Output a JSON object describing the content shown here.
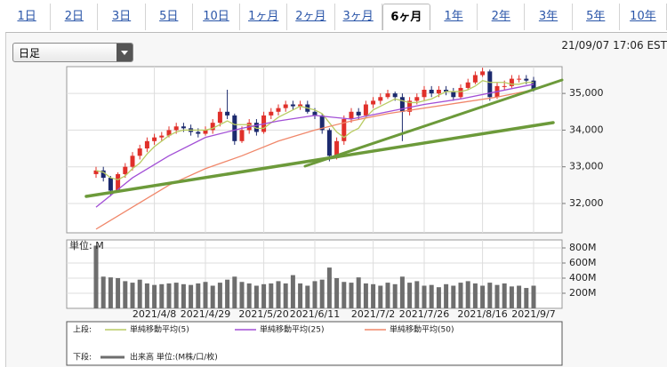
{
  "tabs": [
    {
      "label": "1日"
    },
    {
      "label": "2日"
    },
    {
      "label": "3日"
    },
    {
      "label": "5日"
    },
    {
      "label": "10日"
    },
    {
      "label": "1ヶ月"
    },
    {
      "label": "2ヶ月"
    },
    {
      "label": "3ヶ月"
    },
    {
      "label": "6ヶ月",
      "active": true
    },
    {
      "label": "1年"
    },
    {
      "label": "2年"
    },
    {
      "label": "3年"
    },
    {
      "label": "5年"
    },
    {
      "label": "10年"
    }
  ],
  "period_select": "日足",
  "timestamp": "21/09/07 17:06 EST",
  "chart_data": [
    {
      "type": "candlestick",
      "legend_title": "上段:",
      "up_color": "#e0302a",
      "down_color": "#1c2a6e",
      "ylim": [
        31200,
        35730
      ],
      "yticks": [
        {
          "value": 32000,
          "label": "32,000"
        },
        {
          "value": 33000,
          "label": "33,000"
        },
        {
          "value": 34000,
          "label": "34,000"
        },
        {
          "value": 35000,
          "label": "35,000"
        }
      ],
      "grid": true,
      "open": [
        32800,
        32900,
        32700,
        32350,
        32800,
        33000,
        33300,
        33500,
        33700,
        33800,
        33850,
        34000,
        34100,
        34050,
        33950,
        33900,
        34000,
        34200,
        34500,
        34400,
        33700,
        34000,
        34200,
        33950,
        34400,
        34500,
        34600,
        34700,
        34650,
        34700,
        34500,
        34400,
        34000,
        33300,
        33700,
        34300,
        34500,
        34400,
        34700,
        34800,
        34900,
        35000,
        34900,
        34500,
        34800,
        34900,
        35100,
        35000,
        35100,
        35050,
        34900,
        35150,
        35300,
        35500,
        35600,
        34900,
        35200,
        35200,
        35400,
        35400,
        35350
      ],
      "high": [
        33000,
        33000,
        32750,
        32850,
        33100,
        33400,
        33600,
        33800,
        33900,
        33950,
        34100,
        34200,
        34200,
        34150,
        34050,
        34100,
        34300,
        34600,
        35100,
        34450,
        34100,
        34300,
        34300,
        34500,
        34600,
        34700,
        34800,
        34800,
        34800,
        34800,
        34600,
        34450,
        34050,
        33800,
        34400,
        34600,
        34600,
        34800,
        34900,
        35000,
        35100,
        35050,
        35000,
        34900,
        35000,
        35200,
        35200,
        35200,
        35200,
        35150,
        35250,
        35400,
        35600,
        35700,
        35650,
        35300,
        35350,
        35500,
        35500,
        35500,
        35450
      ],
      "low": [
        32700,
        32600,
        32200,
        32300,
        32700,
        32900,
        33200,
        33400,
        33600,
        33700,
        33800,
        33900,
        33950,
        33850,
        33800,
        33850,
        33900,
        34100,
        34300,
        33600,
        33650,
        33900,
        33850,
        33900,
        34300,
        34400,
        34500,
        34550,
        34550,
        34450,
        34300,
        33900,
        33150,
        33200,
        33600,
        34200,
        34300,
        34350,
        34600,
        34700,
        34850,
        34800,
        33700,
        34400,
        34700,
        34800,
        34900,
        34900,
        34950,
        34800,
        34850,
        35100,
        35250,
        35450,
        34800,
        34850,
        35100,
        35150,
        35300,
        35250,
        35050
      ],
      "close": [
        32900,
        32700,
        32350,
        32800,
        33000,
        33300,
        33500,
        33700,
        33800,
        33850,
        34000,
        34100,
        34050,
        33950,
        33900,
        34000,
        34200,
        34500,
        34400,
        33700,
        34000,
        34200,
        33950,
        34400,
        34500,
        34600,
        34700,
        34650,
        34700,
        34500,
        34400,
        34000,
        33300,
        33700,
        34300,
        34500,
        34400,
        34700,
        34800,
        34900,
        35000,
        34900,
        34500,
        34800,
        34900,
        35100,
        35000,
        35100,
        35050,
        34900,
        35150,
        35300,
        35500,
        35600,
        34900,
        35200,
        35200,
        35400,
        35400,
        35350,
        35100
      ],
      "series": [
        {
          "name": "単純移動平均(5)",
          "color": "#b9cc63",
          "values": [
            32900,
            32850,
            32700,
            32650,
            32750,
            32950,
            33100,
            33350,
            33550,
            33700,
            33850,
            33950,
            34000,
            34000,
            34000,
            34000,
            34050,
            34150,
            34250,
            34150,
            34150,
            34150,
            34050,
            34050,
            34200,
            34350,
            34450,
            34550,
            34650,
            34600,
            34550,
            34450,
            34200,
            33950,
            33800,
            33950,
            34050,
            34350,
            34550,
            34650,
            34750,
            34850,
            34800,
            34750,
            34750,
            34800,
            34850,
            34950,
            35050,
            35050,
            35050,
            35100,
            35200,
            35350,
            35300,
            35300,
            35300,
            35250,
            35250,
            35300,
            35300
          ]
        },
        {
          "name": "単純移動平均(25)",
          "color": "#a24fd6",
          "x": [
            0,
            5,
            10,
            15,
            20,
            25,
            30,
            35,
            40,
            45,
            50,
            55,
            60
          ],
          "values": [
            31900,
            32700,
            33300,
            33800,
            34050,
            34250,
            34400,
            34300,
            34500,
            34700,
            34850,
            35050,
            35250
          ]
        },
        {
          "name": "単純移動平均(50)",
          "color": "#f0876a",
          "x": [
            0,
            5,
            10,
            15,
            20,
            25,
            30,
            35,
            40,
            45,
            50,
            55,
            60
          ],
          "values": [
            31300,
            31900,
            32500,
            32950,
            33300,
            33700,
            34000,
            34250,
            34450,
            34600,
            34750,
            34900,
            35100
          ]
        }
      ]
    },
    {
      "type": "bar",
      "legend_title": "下段:",
      "unit_label": "単位: M",
      "categories": [
        null,
        null,
        null,
        null,
        null,
        null,
        null,
        null,
        "2021/4/8",
        null,
        null,
        null,
        null,
        null,
        null,
        "2021/4/29",
        null,
        null,
        null,
        null,
        null,
        null,
        null,
        "2021/5/20",
        null,
        null,
        null,
        null,
        null,
        null,
        "2021/6/11",
        null,
        null,
        null,
        null,
        null,
        null,
        null,
        "2021/7/2",
        null,
        null,
        null,
        null,
        null,
        null,
        "2021/7/26",
        null,
        null,
        null,
        null,
        null,
        null,
        null,
        "2021/8/16",
        null,
        null,
        null,
        null,
        null,
        null,
        "2021/9/7"
      ],
      "ylim": [
        0,
        906
      ],
      "yticks": [
        {
          "value": 200,
          "label": "200M"
        },
        {
          "value": 400,
          "label": "400M"
        },
        {
          "value": 600,
          "label": "600M"
        },
        {
          "value": 800,
          "label": "800M"
        }
      ],
      "grid": true,
      "series": [
        {
          "name": "出来高 単位:(M株/口/枚)",
          "color": "#6e6e6e",
          "values": [
            830,
            420,
            410,
            400,
            360,
            340,
            380,
            330,
            310,
            320,
            330,
            340,
            320,
            310,
            330,
            350,
            300,
            340,
            380,
            420,
            350,
            330,
            300,
            320,
            330,
            360,
            330,
            440,
            330,
            300,
            360,
            380,
            540,
            400,
            350,
            340,
            410,
            330,
            320,
            300,
            340,
            320,
            420,
            340,
            360,
            300,
            310,
            280,
            320,
            300,
            340,
            360,
            330,
            300,
            340,
            310,
            330,
            290,
            300,
            270,
            300
          ]
        }
      ]
    }
  ]
}
